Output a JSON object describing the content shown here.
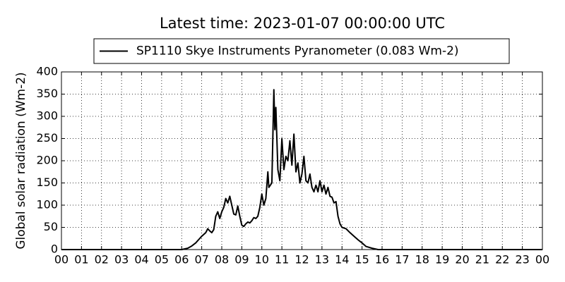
{
  "chart_data": {
    "type": "line",
    "title": "Latest time: 2023-01-07 00:00:00 UTC",
    "ylabel": "Global solar radiation (Wm-2)",
    "x": [
      0,
      6.0,
      6.3,
      6.5,
      6.7,
      6.9,
      7.0,
      7.2,
      7.3,
      7.4,
      7.5,
      7.6,
      7.7,
      7.8,
      7.9,
      8.0,
      8.1,
      8.2,
      8.3,
      8.4,
      8.5,
      8.6,
      8.7,
      8.8,
      8.9,
      9.0,
      9.1,
      9.2,
      9.3,
      9.4,
      9.5,
      9.6,
      9.7,
      9.8,
      9.9,
      10.0,
      10.1,
      10.2,
      10.3,
      10.35,
      10.5,
      10.6,
      10.65,
      10.7,
      10.8,
      10.9,
      11.0,
      11.1,
      11.2,
      11.3,
      11.4,
      11.5,
      11.6,
      11.7,
      11.8,
      11.9,
      12.0,
      12.1,
      12.2,
      12.3,
      12.4,
      12.5,
      12.6,
      12.7,
      12.8,
      12.9,
      13.0,
      13.1,
      13.2,
      13.3,
      13.4,
      13.5,
      13.6,
      13.7,
      13.8,
      13.9,
      14.0,
      14.2,
      14.4,
      14.6,
      14.8,
      15.0,
      15.2,
      15.5,
      15.8,
      24.0
    ],
    "series": [
      {
        "name": "SP1110 Skye Instruments Pyranometer (0.083 Wm-2)",
        "color": "#000000",
        "values": [
          0,
          0,
          3,
          8,
          15,
          25,
          30,
          38,
          47,
          42,
          38,
          45,
          75,
          85,
          70,
          85,
          95,
          115,
          105,
          120,
          100,
          80,
          78,
          98,
          75,
          55,
          52,
          58,
          62,
          60,
          65,
          72,
          70,
          75,
          95,
          125,
          100,
          115,
          175,
          140,
          150,
          360,
          270,
          320,
          180,
          155,
          250,
          180,
          210,
          200,
          245,
          190,
          260,
          175,
          195,
          150,
          170,
          210,
          155,
          150,
          170,
          140,
          130,
          145,
          130,
          155,
          130,
          145,
          125,
          140,
          120,
          118,
          105,
          108,
          75,
          58,
          50,
          47,
          38,
          30,
          22,
          15,
          7,
          3,
          0,
          0
        ]
      }
    ],
    "xlim": [
      0,
      24
    ],
    "xticks": [
      {
        "value": 0,
        "label": "00"
      },
      {
        "value": 1,
        "label": "01"
      },
      {
        "value": 2,
        "label": "02"
      },
      {
        "value": 3,
        "label": "03"
      },
      {
        "value": 4,
        "label": "04"
      },
      {
        "value": 5,
        "label": "05"
      },
      {
        "value": 6,
        "label": "06"
      },
      {
        "value": 7,
        "label": "07"
      },
      {
        "value": 8,
        "label": "08"
      },
      {
        "value": 9,
        "label": "09"
      },
      {
        "value": 10,
        "label": "10"
      },
      {
        "value": 11,
        "label": "11"
      },
      {
        "value": 12,
        "label": "12"
      },
      {
        "value": 13,
        "label": "13"
      },
      {
        "value": 14,
        "label": "14"
      },
      {
        "value": 15,
        "label": "15"
      },
      {
        "value": 16,
        "label": "16"
      },
      {
        "value": 17,
        "label": "17"
      },
      {
        "value": 18,
        "label": "18"
      },
      {
        "value": 19,
        "label": "19"
      },
      {
        "value": 20,
        "label": "20"
      },
      {
        "value": 21,
        "label": "21"
      },
      {
        "value": 22,
        "label": "22"
      },
      {
        "value": 23,
        "label": "23"
      },
      {
        "value": 24,
        "label": "00"
      }
    ],
    "ylim": [
      0,
      400
    ],
    "yticks": [
      0,
      50,
      100,
      150,
      200,
      250,
      300,
      350,
      400
    ],
    "grid": true,
    "legend": "top"
  }
}
